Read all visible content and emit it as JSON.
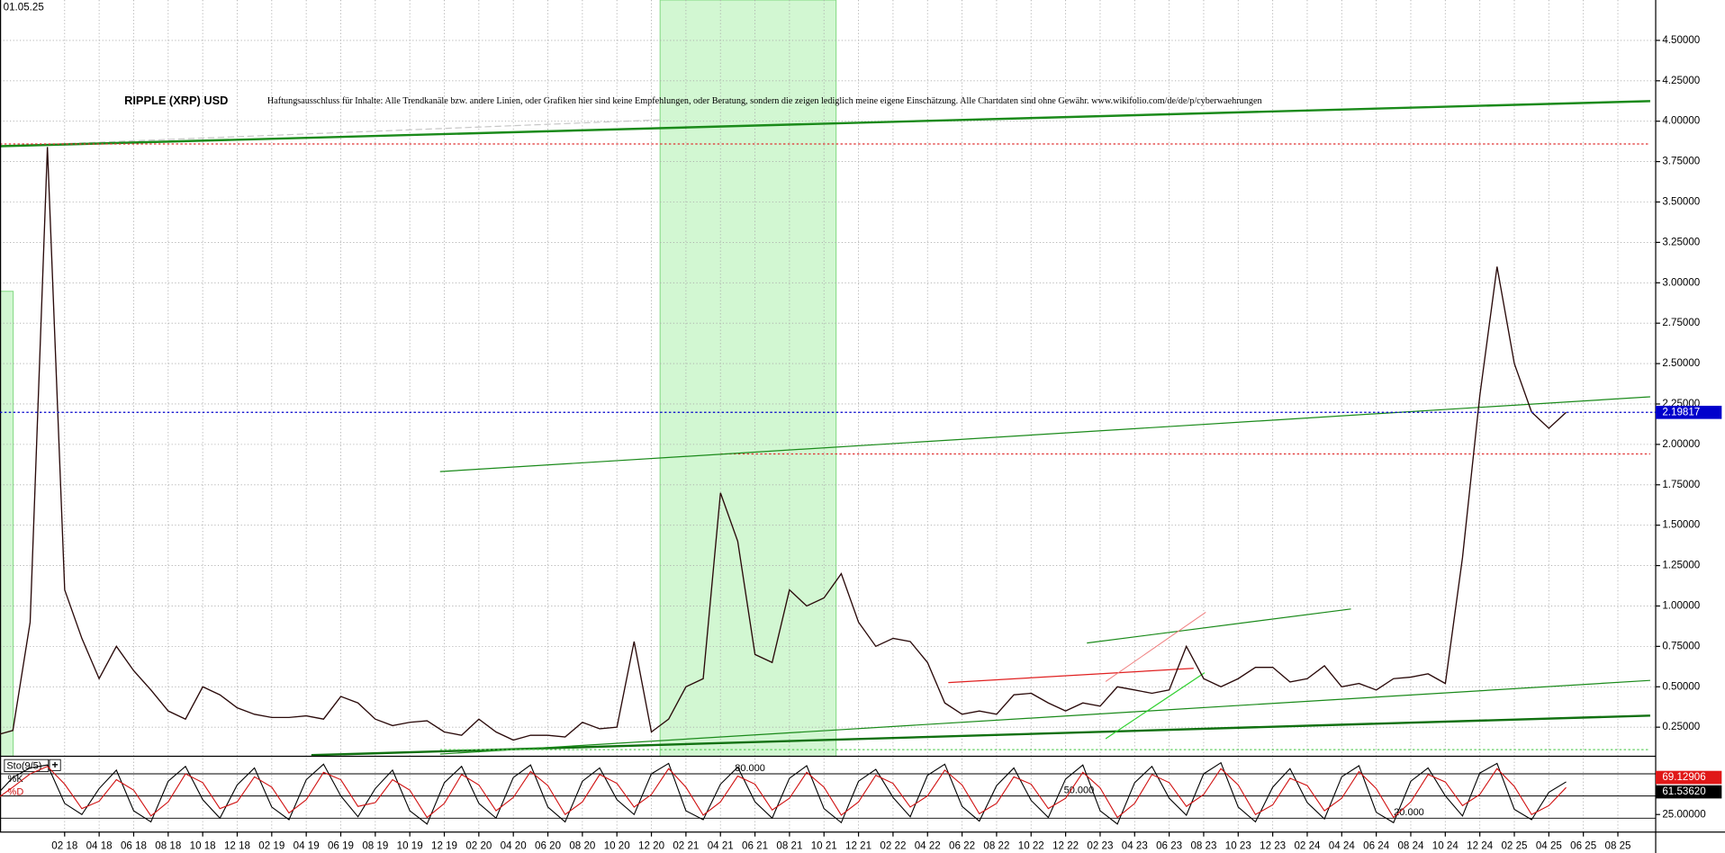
{
  "chart_data": [
    {
      "type": "line",
      "date": "01.05.25",
      "title": "RIPPLE (XRP) USD",
      "subtitle": "Haftungsausschluss für Inhalte: Alle Trendkanäle bzw. andere Linien, oder Grafiken hier sind keine Empfehlungen, oder Beratung, sondern die zeigen lediglich meine eigene Einschätzung. Alle Chartdaten sind ohne Gewähr. www.wikifolio.com/de/de/p/cyberwaehrungen",
      "x": [
        "10 17",
        "11 17",
        "12 17",
        "01 18",
        "02 18",
        "03 18",
        "04 18",
        "05 18",
        "06 18",
        "07 18",
        "08 18",
        "09 18",
        "10 18",
        "11 18",
        "12 18",
        "01 19",
        "02 19",
        "03 19",
        "04 19",
        "05 19",
        "06 19",
        "07 19",
        "08 19",
        "09 19",
        "10 19",
        "11 19",
        "12 19",
        "01 20",
        "02 20",
        "03 20",
        "04 20",
        "05 20",
        "06 20",
        "07 20",
        "08 20",
        "09 20",
        "10 20",
        "11 20",
        "12 20",
        "01 21",
        "02 21",
        "03 21",
        "04 21",
        "05 21",
        "06 21",
        "07 21",
        "08 21",
        "09 21",
        "10 21",
        "11 21",
        "12 21",
        "01 22",
        "02 22",
        "03 22",
        "04 22",
        "05 22",
        "06 22",
        "07 22",
        "08 22",
        "09 22",
        "10 22",
        "11 22",
        "12 22",
        "01 23",
        "02 23",
        "03 23",
        "04 23",
        "05 23",
        "06 23",
        "07 23",
        "08 23",
        "09 23",
        "10 23",
        "11 23",
        "12 23",
        "01 24",
        "02 24",
        "03 24",
        "04 24",
        "05 24",
        "06 24",
        "07 24",
        "08 24",
        "09 24",
        "10 24",
        "11 24",
        "12 24",
        "01 25",
        "02 25",
        "03 25",
        "04 25",
        "05 25"
      ],
      "series": [
        {
          "name": "RIPPLE (XRP) USD",
          "color": "#2a0a0a",
          "values": [
            0.2,
            0.23,
            0.9,
            3.84,
            1.1,
            0.8,
            0.55,
            0.75,
            0.6,
            0.48,
            0.35,
            0.3,
            0.5,
            0.45,
            0.37,
            0.33,
            0.31,
            0.31,
            0.32,
            0.3,
            0.44,
            0.4,
            0.3,
            0.26,
            0.28,
            0.29,
            0.22,
            0.2,
            0.3,
            0.22,
            0.17,
            0.2,
            0.2,
            0.19,
            0.28,
            0.24,
            0.25,
            0.78,
            0.22,
            0.3,
            0.5,
            0.55,
            1.7,
            1.4,
            0.7,
            0.65,
            1.1,
            1.0,
            1.05,
            1.2,
            0.9,
            0.75,
            0.8,
            0.78,
            0.65,
            0.4,
            0.33,
            0.35,
            0.33,
            0.45,
            0.46,
            0.4,
            0.35,
            0.4,
            0.38,
            0.5,
            0.48,
            0.46,
            0.48,
            0.75,
            0.55,
            0.5,
            0.55,
            0.62,
            0.62,
            0.53,
            0.55,
            0.63,
            0.5,
            0.52,
            0.48,
            0.55,
            0.56,
            0.58,
            0.52,
            1.3,
            2.3,
            3.1,
            2.5,
            2.2,
            2.1,
            2.19817
          ]
        }
      ],
      "xlim": [
        "10 17",
        "10 25"
      ],
      "xticks": [
        "02 18",
        "04 18",
        "06 18",
        "08 18",
        "10 18",
        "12 18",
        "02 19",
        "04 19",
        "06 19",
        "08 19",
        "10 19",
        "12 19",
        "02 20",
        "04 20",
        "06 20",
        "08 20",
        "10 20",
        "12 20",
        "02 21",
        "04 21",
        "06 21",
        "08 21",
        "10 21",
        "12 21",
        "02 22",
        "04 22",
        "06 22",
        "08 22",
        "10 22",
        "12 22",
        "02 23",
        "04 23",
        "06 23",
        "08 23",
        "10 23",
        "12 23",
        "02 24",
        "04 24",
        "06 24",
        "08 24",
        "10 24",
        "12 24",
        "02 25",
        "04 25",
        "06 25",
        "08 25"
      ],
      "ylim": [
        0.07,
        4.75
      ],
      "yticks": [
        {
          "value": 0.25,
          "label": "0.25000"
        },
        {
          "value": 0.5,
          "label": "0.50000"
        },
        {
          "value": 0.75,
          "label": "0.75000"
        },
        {
          "value": 1,
          "label": "1.00000"
        },
        {
          "value": 1.25,
          "label": "1.25000"
        },
        {
          "value": 1.5,
          "label": "1.50000"
        },
        {
          "value": 1.75,
          "label": "1.75000"
        },
        {
          "value": 2,
          "label": "2.00000"
        },
        {
          "value": 2.25,
          "label": "2.25000"
        },
        {
          "value": 2.5,
          "label": "2.50000"
        },
        {
          "value": 2.75,
          "label": "2.75000"
        },
        {
          "value": 3,
          "label": "3.00000"
        },
        {
          "value": 3.25,
          "label": "3.25000"
        },
        {
          "value": 3.5,
          "label": "3.50000"
        },
        {
          "value": 3.75,
          "label": "3.75000"
        },
        {
          "value": 4,
          "label": "4.00000"
        },
        {
          "value": 4.25,
          "label": "4.25000"
        },
        {
          "value": 4.5,
          "label": "4.50000"
        }
      ],
      "grid": true,
      "current_color": "#0000cc"
    },
    {
      "type": "stochastic",
      "title": "Sto(9/5)",
      "series": [
        {
          "name": "%K",
          "color": "#000000",
          "values": [
            50,
            75,
            88,
            92,
            40,
            25,
            60,
            85,
            30,
            15,
            70,
            90,
            45,
            20,
            65,
            88,
            35,
            18,
            72,
            93,
            50,
            22,
            60,
            85,
            30,
            12,
            68,
            90,
            40,
            20,
            75,
            92,
            35,
            15,
            70,
            88,
            45,
            25,
            80,
            94,
            30,
            18,
            66,
            89,
            42,
            20,
            74,
            91,
            33,
            14,
            70,
            86,
            48,
            22,
            78,
            93,
            36,
            16,
            64,
            88,
            44,
            21,
            73,
            92,
            30,
            12,
            68,
            90,
            47,
            24,
            80,
            95,
            35,
            15,
            62,
            87,
            41,
            19,
            76,
            91,
            28,
            14,
            70,
            88,
            50,
            23,
            81,
            94,
            32,
            18,
            55,
            69.12906
          ]
        },
        {
          "name": "%D",
          "color": "#d01010",
          "values": [
            45,
            62,
            80,
            90,
            66,
            33,
            43,
            72,
            58,
            23,
            42,
            80,
            68,
            33,
            42,
            76,
            62,
            27,
            45,
            82,
            72,
            36,
            41,
            72,
            58,
            21,
            40,
            79,
            65,
            30,
            48,
            83,
            64,
            25,
            42,
            79,
            67,
            35,
            52,
            87,
            62,
            24,
            42,
            77,
            66,
            31,
            47,
            82,
            62,
            24,
            42,
            78,
            67,
            35,
            50,
            85,
            65,
            26,
            40,
            76,
            66,
            33,
            47,
            82,
            61,
            21,
            40,
            79,
            68,
            36,
            52,
            87,
            65,
            25,
            38,
            74,
            64,
            30,
            47,
            83,
            60,
            21,
            42,
            79,
            69,
            37,
            52,
            87,
            63,
            25,
            37,
            61.5362
          ],
          "last_label": "61.53620"
        }
      ],
      "ylim": [
        0,
        100
      ],
      "yticks": [
        {
          "value": 25,
          "label": "25.00000"
        }
      ],
      "levels": [
        {
          "value": 80,
          "label": "80.000"
        },
        {
          "value": 50,
          "label": "50.000"
        },
        {
          "value": 20,
          "label": "20.000"
        }
      ]
    }
  ]
}
